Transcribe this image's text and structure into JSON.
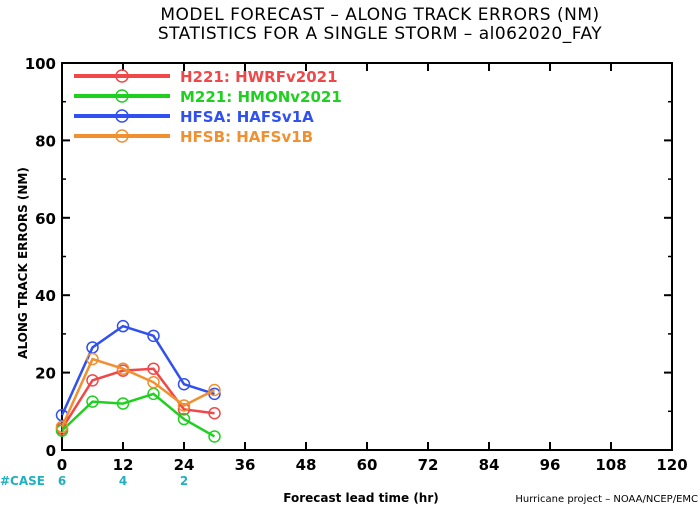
{
  "chart_data": {
    "type": "line",
    "title": "MODEL FORECAST – ALONG TRACK ERRORS (NM)",
    "subtitle": "STATISTICS FOR A SINGLE STORM – al062020_FAY",
    "xlabel": "Forecast lead time (hr)",
    "ylabel": "ALONG TRACK ERRORS (NM)",
    "xlim": [
      0,
      120
    ],
    "ylim": [
      0,
      100
    ],
    "xticks": [
      0,
      12,
      24,
      36,
      48,
      60,
      72,
      84,
      96,
      108,
      120
    ],
    "yticks": [
      0,
      20,
      40,
      60,
      80,
      100
    ],
    "x": [
      0,
      6,
      12,
      18,
      24,
      30
    ],
    "legend_position": "top-left",
    "series": [
      {
        "name": "H221: HWRFv2021",
        "color": "#f04848",
        "values": [
          5.5,
          18,
          20.5,
          21,
          10.5,
          9.5
        ]
      },
      {
        "name": "M221: HMONv2021",
        "color": "#20d020",
        "values": [
          5,
          12.5,
          12,
          14.5,
          8,
          3.5
        ]
      },
      {
        "name": "HFSA: HAFSv1A",
        "color": "#3050f0",
        "values": [
          9,
          26.5,
          32,
          29.5,
          17,
          14.5
        ]
      },
      {
        "name": "HFSB: HAFSv1B",
        "color": "#f09030",
        "values": [
          6,
          23.5,
          21,
          17.5,
          11.5,
          15.5
        ]
      }
    ],
    "cases": {
      "label": "#CASE",
      "entries": [
        {
          "x": 0,
          "count": "6"
        },
        {
          "x": 12,
          "count": "4"
        },
        {
          "x": 24,
          "count": "2"
        }
      ]
    },
    "credit": "Hurricane project – NOAA/NCEP/EMC"
  }
}
